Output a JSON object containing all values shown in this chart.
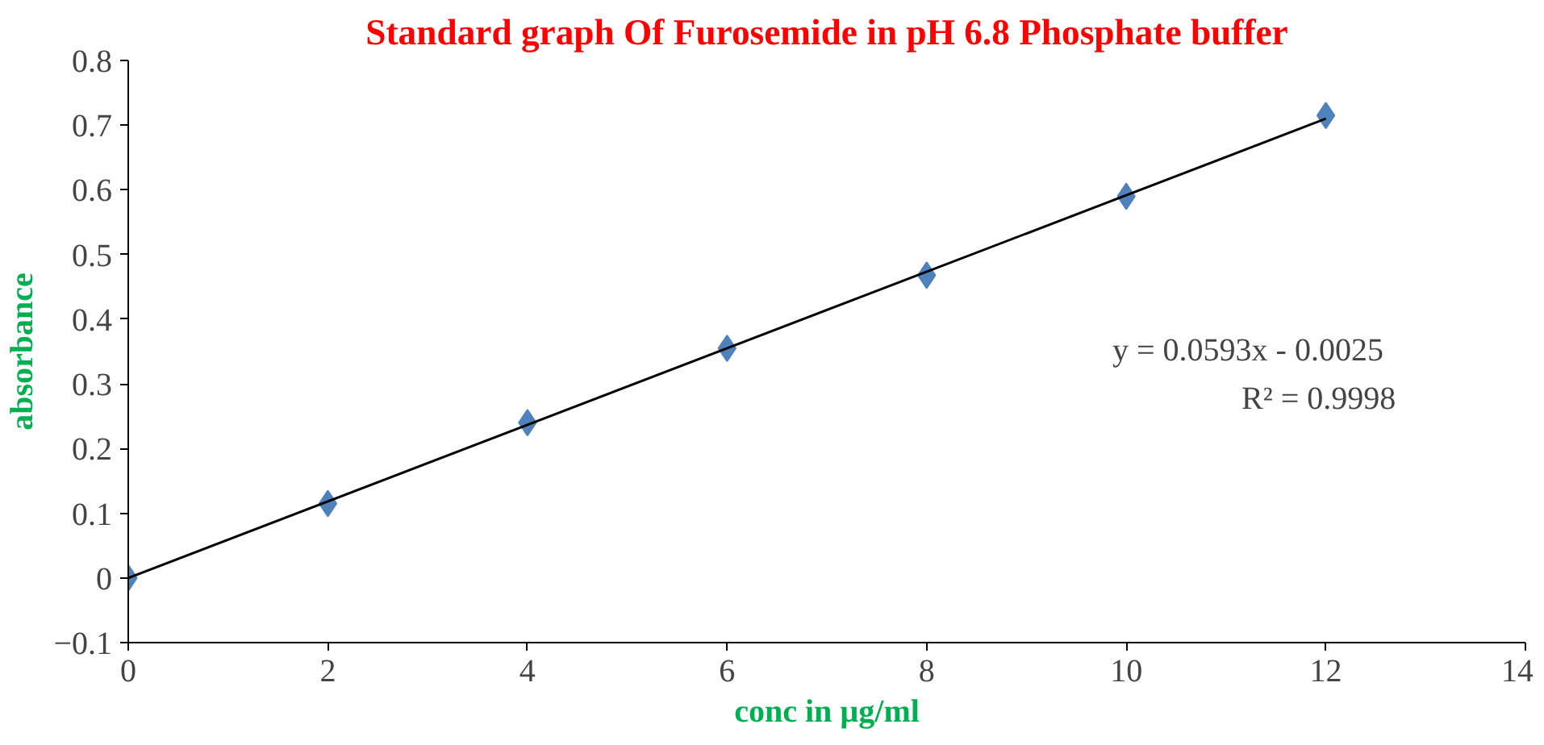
{
  "chart_data": {
    "type": "scatter",
    "title": "Standard graph Of Furosemide in pH 6.8 Phosphate buffer",
    "xlabel": "conc in µg/ml",
    "ylabel": "absorbance",
    "x": [
      0,
      2,
      4,
      6,
      8,
      10,
      12
    ],
    "series": [
      {
        "color": "#4f81bd",
        "marker": "diamond",
        "values": [
          0,
          0.115,
          0.24,
          0.355,
          0.468,
          0.59,
          0.715
        ]
      },
      {
        "type": "line",
        "color": "#000000",
        "x": [
          0,
          12
        ],
        "values": [
          0,
          0.71
        ],
        "line_style": "solid"
      }
    ],
    "annotations": [
      "y = 0.0593x - 0.0025",
      "R² = 0.9998"
    ],
    "xlim": [
      0,
      14
    ],
    "xticks": [
      0,
      2,
      4,
      6,
      8,
      10,
      12,
      14
    ],
    "ylim": [
      -0.1,
      0.8
    ],
    "yticks": [
      -0.1,
      0,
      0.1,
      0.2,
      0.3,
      0.4,
      0.5,
      0.6,
      0.7,
      0.8
    ],
    "grid": false
  }
}
